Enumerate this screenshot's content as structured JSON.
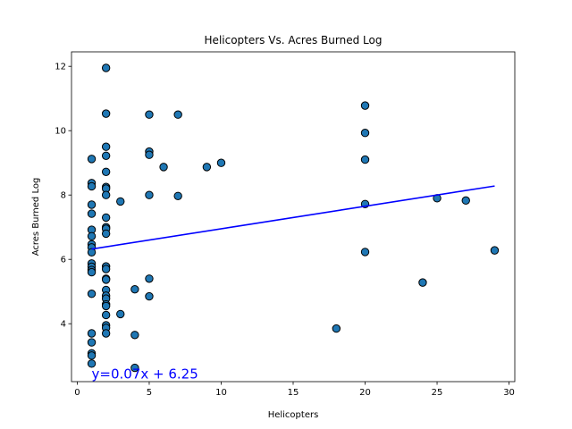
{
  "chart_data": {
    "type": "scatter",
    "title": "Helicopters Vs. Acres Burned Log",
    "xlabel": "Helicopters",
    "ylabel": "Acres Burned Log",
    "xlim": [
      -0.4,
      30.4
    ],
    "ylim": [
      2.2,
      12.45
    ],
    "xticks": [
      0,
      5,
      10,
      15,
      20,
      25,
      30
    ],
    "yticks": [
      4,
      6,
      8,
      10,
      12
    ],
    "grid": false,
    "points": [
      [
        1,
        9.12
      ],
      [
        1,
        8.37
      ],
      [
        1,
        8.27
      ],
      [
        1,
        7.7
      ],
      [
        1,
        7.42
      ],
      [
        1,
        6.92
      ],
      [
        1,
        6.72
      ],
      [
        1,
        6.47
      ],
      [
        1,
        6.37
      ],
      [
        1,
        6.22
      ],
      [
        1,
        5.87
      ],
      [
        1,
        5.77
      ],
      [
        1,
        5.67
      ],
      [
        1,
        5.6
      ],
      [
        1,
        4.93
      ],
      [
        1,
        3.7
      ],
      [
        1,
        3.42
      ],
      [
        1,
        3.08
      ],
      [
        1,
        3.01
      ],
      [
        1,
        2.76
      ],
      [
        2,
        11.95
      ],
      [
        2,
        10.53
      ],
      [
        2,
        9.5
      ],
      [
        2,
        9.22
      ],
      [
        2,
        8.72
      ],
      [
        2,
        8.25
      ],
      [
        2,
        8.2
      ],
      [
        2,
        8.0
      ],
      [
        2,
        7.3
      ],
      [
        2,
        7.0
      ],
      [
        2,
        6.95
      ],
      [
        2,
        6.8
      ],
      [
        2,
        5.78
      ],
      [
        2,
        5.7
      ],
      [
        2,
        5.4
      ],
      [
        2,
        5.37
      ],
      [
        2,
        5.05
      ],
      [
        2,
        4.87
      ],
      [
        2,
        4.78
      ],
      [
        2,
        4.6
      ],
      [
        2,
        4.55
      ],
      [
        2,
        4.27
      ],
      [
        2,
        3.95
      ],
      [
        2,
        3.87
      ],
      [
        2,
        3.7
      ],
      [
        3,
        7.8
      ],
      [
        3,
        4.3
      ],
      [
        4,
        5.07
      ],
      [
        4,
        3.65
      ],
      [
        4,
        2.63
      ],
      [
        5,
        10.5
      ],
      [
        5,
        9.35
      ],
      [
        5,
        9.25
      ],
      [
        5,
        8.0
      ],
      [
        5,
        5.4
      ],
      [
        5,
        4.85
      ],
      [
        6,
        8.87
      ],
      [
        7,
        10.5
      ],
      [
        7,
        7.97
      ],
      [
        9,
        8.87
      ],
      [
        10,
        9.0
      ],
      [
        18,
        3.85
      ],
      [
        20,
        10.78
      ],
      [
        20,
        9.93
      ],
      [
        20,
        9.1
      ],
      [
        20,
        7.72
      ],
      [
        20,
        6.23
      ],
      [
        24,
        5.28
      ],
      [
        25,
        7.9
      ],
      [
        27,
        7.83
      ],
      [
        29,
        6.28
      ]
    ],
    "regression": {
      "slope": 0.07,
      "intercept": 6.25,
      "x_start": 1,
      "x_end": 29,
      "equation": "y=0.07x + 6.25",
      "label_x": 1,
      "label_y": 2.3
    },
    "colors": {
      "marker_fill": "#1f77b4",
      "marker_edge": "#000000",
      "line": "#0000ff",
      "equation_text": "#0000ff"
    }
  }
}
